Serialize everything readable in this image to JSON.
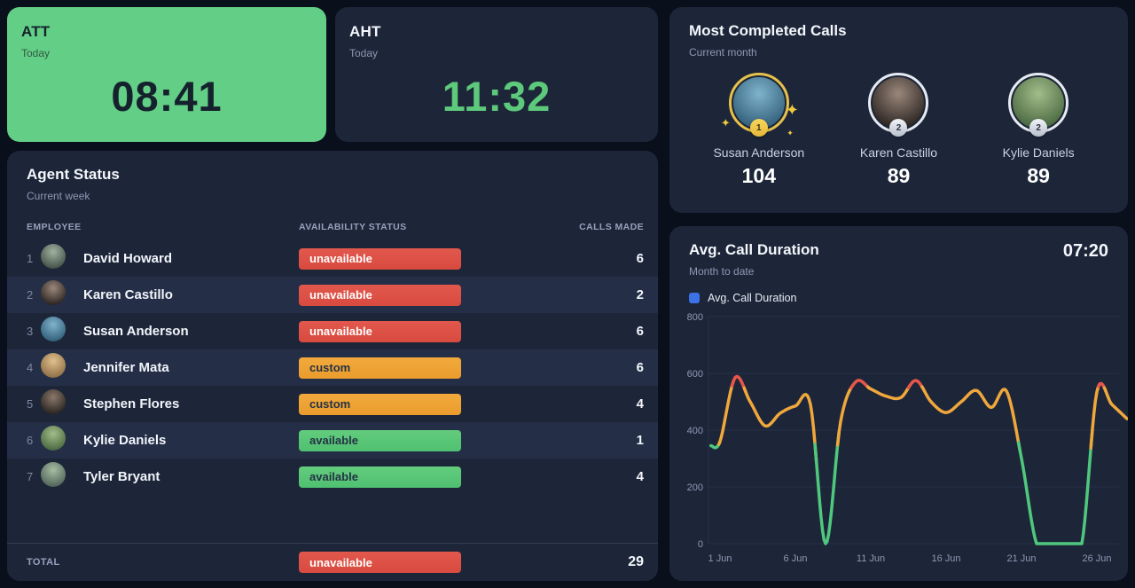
{
  "stats": {
    "att": {
      "title": "ATT",
      "subtitle": "Today",
      "value": "08:41"
    },
    "aht": {
      "title": "AHT",
      "subtitle": "Today",
      "value": "11:32"
    }
  },
  "most_completed": {
    "title": "Most Completed Calls",
    "subtitle": "Current month",
    "leaders": [
      {
        "name": "Susan Anderson",
        "count": "104",
        "rank": "1",
        "avatar": [
          "#7fb3cc",
          "#2e5a74"
        ]
      },
      {
        "name": "Karen Castillo",
        "count": "89",
        "rank": "2",
        "avatar": [
          "#9a877b",
          "#241e1b"
        ]
      },
      {
        "name": "Kylie Daniels",
        "count": "89",
        "rank": "2",
        "avatar": [
          "#a3bd8a",
          "#44633c"
        ]
      }
    ]
  },
  "agent_status": {
    "title": "Agent Status",
    "subtitle": "Current week",
    "columns": {
      "employee": "EMPLOYEE",
      "status": "AVAILABILITY STATUS",
      "calls": "CALLS MADE"
    },
    "rows": [
      {
        "rank": "1",
        "name": "David Howard",
        "status": "unavailable",
        "calls": "6",
        "avatar": [
          "#9fb2a0",
          "#3e4a42"
        ]
      },
      {
        "rank": "2",
        "name": "Karen Castillo",
        "status": "unavailable",
        "calls": "2",
        "avatar": [
          "#9a877b",
          "#241e1b"
        ]
      },
      {
        "rank": "3",
        "name": "Susan Anderson",
        "status": "unavailable",
        "calls": "6",
        "avatar": [
          "#7fb3cc",
          "#2e5a74"
        ]
      },
      {
        "rank": "4",
        "name": "Jennifer Mata",
        "status": "custom",
        "calls": "6",
        "avatar": [
          "#e0c08c",
          "#8a6a42"
        ]
      },
      {
        "rank": "5",
        "name": "Stephen Flores",
        "status": "custom",
        "calls": "4",
        "avatar": [
          "#8a786a",
          "#241f1c"
        ]
      },
      {
        "rank": "6",
        "name": "Kylie Daniels",
        "status": "available",
        "calls": "1",
        "avatar": [
          "#a3bd8a",
          "#44633c"
        ]
      },
      {
        "rank": "7",
        "name": "Tyler Bryant",
        "status": "available",
        "calls": "4",
        "avatar": [
          "#a8bda2",
          "#4a5f55"
        ]
      }
    ],
    "total": {
      "label": "TOTAL",
      "status": "unavailable",
      "calls": "29"
    }
  },
  "chart_data": {
    "type": "line",
    "title": "Avg. Call Duration",
    "subtitle": "Month to date",
    "header_value": "07:20",
    "legend": [
      {
        "label": "Avg. Call Duration",
        "color": "#3b72e8"
      }
    ],
    "x_days": [
      0.4,
      1,
      2,
      3,
      4,
      5,
      6,
      7,
      8,
      9,
      10,
      11,
      12,
      13,
      14,
      15,
      16,
      17,
      18,
      19,
      20,
      21,
      22,
      23,
      24,
      25,
      26,
      27,
      28
    ],
    "values": [
      345,
      360,
      585,
      500,
      415,
      460,
      485,
      490,
      0,
      430,
      570,
      545,
      520,
      515,
      575,
      500,
      462,
      500,
      540,
      480,
      538,
      300,
      0,
      0,
      0,
      0,
      535,
      490,
      440
    ],
    "x_tick_days": [
      1,
      6,
      11,
      16,
      21,
      26
    ],
    "x_tick_labels": [
      "1 Jun",
      "6 Jun",
      "11 Jun",
      "16 Jun",
      "21 Jun",
      "26 Jun"
    ],
    "y_ticks": [
      0,
      200,
      400,
      600,
      800
    ],
    "ylim": [
      0,
      800
    ],
    "grid": "horizontal",
    "legend_position": "top-left",
    "line_colors": {
      "high": "#e8564a",
      "mid": "#f0a73c",
      "low": "#4fc87e"
    },
    "color_thresholds": {
      "high": 552,
      "low": 350
    }
  },
  "colors": {
    "page_bg": "#0a0f1c",
    "card_bg": "#1d2639",
    "row_alt_bg": "#242e47",
    "accent_green": "#63ce85",
    "time_green": "#5dc97b",
    "status_unavailable": "#e0544a",
    "status_custom": "#f0a236",
    "status_available": "#5fc878",
    "legend_blue": "#3b72e8",
    "gold_ring": "#e7c24a",
    "muted_text": "#8d97b2"
  }
}
